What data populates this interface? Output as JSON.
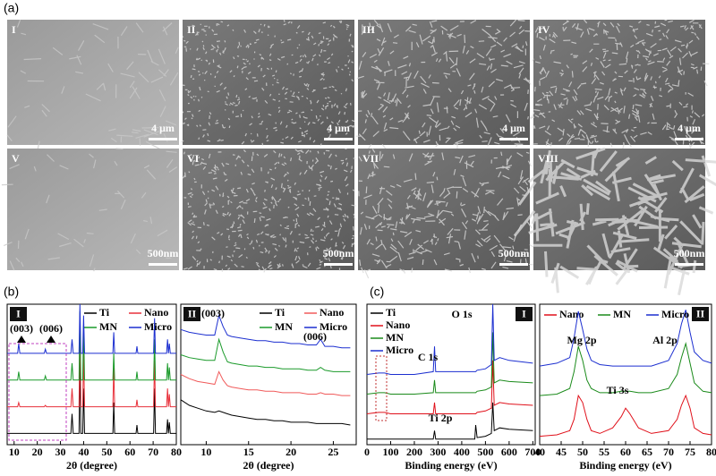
{
  "panel_labels": [
    "(a)",
    "(b)",
    "(c)"
  ],
  "sem_images": [
    {
      "label": "I",
      "scale_bar": "4 μm"
    },
    {
      "label": "II",
      "scale_bar": "4 μm"
    },
    {
      "label": "III",
      "scale_bar": "4 μm"
    },
    {
      "label": "IV",
      "scale_bar": "4 μm"
    },
    {
      "label": "V",
      "scale_bar": "500nm"
    },
    {
      "label": "VI",
      "scale_bar": "500nm"
    },
    {
      "label": "VII",
      "scale_bar": "500nm"
    },
    {
      "label": "VIII",
      "scale_bar": "500nm"
    }
  ],
  "chart_data": [
    {
      "type": "line",
      "panel": "I",
      "xlabel": "2θ (degree)",
      "x": [
        7,
        10,
        11.5,
        12,
        12.5,
        15,
        20,
        23,
        23.5,
        24,
        30,
        34.5,
        35,
        35.5,
        38,
        38.4,
        38.8,
        39.6,
        40,
        40.4,
        45,
        52.6,
        53,
        53.4,
        60,
        62.6,
        63,
        63.4,
        70.2,
        70.6,
        71,
        75.8,
        76.2,
        76.6,
        77,
        77.4,
        80
      ],
      "xlim": [
        7,
        80
      ],
      "ylim": [
        0,
        100
      ],
      "xticks": [
        10,
        20,
        30,
        40,
        50,
        60,
        70,
        80
      ],
      "annotations": [
        "(003)",
        "(006)"
      ],
      "series": [
        {
          "name": "Ti",
          "color": "#000000",
          "values": [
            8,
            8,
            8,
            8,
            8,
            8,
            8,
            8,
            8,
            8,
            8,
            8,
            22,
            8,
            8,
            60,
            8,
            8,
            40,
            8,
            8,
            8,
            30,
            8,
            8,
            8,
            14,
            8,
            8,
            40,
            8,
            8,
            18,
            8,
            16,
            8,
            8
          ]
        },
        {
          "name": "Nano",
          "color": "#e8303a",
          "values": [
            27,
            27,
            27,
            30,
            27,
            27,
            27,
            27,
            28,
            27,
            27,
            27,
            40,
            27,
            27,
            90,
            27,
            27,
            65,
            27,
            27,
            27,
            55,
            27,
            27,
            27,
            32,
            27,
            27,
            60,
            27,
            27,
            40,
            27,
            36,
            27,
            27
          ]
        },
        {
          "name": "MN",
          "color": "#1a9a2a",
          "values": [
            46,
            46,
            46,
            52,
            46,
            46,
            46,
            46,
            49,
            46,
            46,
            46,
            58,
            46,
            46,
            95,
            46,
            46,
            85,
            46,
            46,
            46,
            65,
            46,
            46,
            46,
            52,
            46,
            46,
            75,
            46,
            46,
            58,
            46,
            55,
            46,
            46
          ]
        },
        {
          "name": "Micro",
          "color": "#1c2fd0",
          "values": [
            65,
            65,
            65,
            72,
            65,
            65,
            65,
            65,
            68,
            65,
            65,
            65,
            75,
            65,
            65,
            100,
            65,
            65,
            92,
            65,
            65,
            65,
            80,
            65,
            65,
            65,
            70,
            65,
            65,
            90,
            65,
            65,
            75,
            65,
            72,
            65,
            65
          ]
        }
      ]
    },
    {
      "type": "line",
      "panel": "II",
      "xlabel": "2θ (degree)",
      "x": [
        7,
        8,
        9,
        10,
        11,
        11.5,
        12,
        12.5,
        13,
        14,
        15,
        16,
        17,
        18,
        19,
        20,
        21,
        22,
        23,
        23.5,
        24,
        25,
        26,
        27
      ],
      "xlim": [
        7,
        27.7
      ],
      "ylim": [
        0,
        100
      ],
      "xticks": [
        10,
        15,
        20,
        25
      ],
      "annotations": [
        "(003)",
        "(006)"
      ],
      "series": [
        {
          "name": "Ti",
          "color": "#000000",
          "values": [
            32,
            28,
            26,
            24,
            23,
            24,
            23,
            22,
            21,
            20,
            19,
            18,
            18,
            17,
            17,
            16,
            16,
            16,
            15,
            15,
            15,
            15,
            15,
            14
          ]
        },
        {
          "name": "Nano",
          "color": "#f05a5a",
          "values": [
            50,
            47,
            45,
            44,
            43,
            52,
            46,
            42,
            41,
            40,
            39,
            39,
            38,
            38,
            37,
            37,
            37,
            36,
            36,
            37,
            36,
            36,
            35,
            35
          ]
        },
        {
          "name": "MN",
          "color": "#1a9a2a",
          "values": [
            64,
            62,
            61,
            60,
            60,
            75,
            66,
            59,
            58,
            57,
            56,
            56,
            55,
            55,
            54,
            54,
            54,
            53,
            53,
            55,
            53,
            52,
            52,
            52
          ]
        },
        {
          "name": "Micro",
          "color": "#1c2fd0",
          "values": [
            82,
            80,
            79,
            78,
            78,
            92,
            84,
            78,
            77,
            76,
            75,
            74,
            74,
            73,
            73,
            72,
            72,
            71,
            71,
            75,
            70,
            70,
            69,
            69
          ]
        }
      ]
    },
    {
      "type": "line",
      "panel": "I",
      "xlabel": "Binding energy (eV)",
      "x": [
        0,
        50,
        74,
        100,
        200,
        280,
        285,
        290,
        400,
        455,
        459,
        465,
        500,
        525,
        531,
        537,
        560,
        600,
        700
      ],
      "xlim": [
        0,
        710
      ],
      "ylim": [
        0,
        100
      ],
      "xticks": [
        0,
        100,
        200,
        300,
        400,
        500,
        600,
        700
      ],
      "annotations": [
        "O 1s",
        "C 1s",
        "Ti 2p"
      ],
      "series": [
        {
          "name": "Ti",
          "color": "#000000",
          "values": [
            4,
            4,
            4,
            4,
            4,
            4,
            10,
            4,
            4,
            4,
            14,
            5,
            6,
            8,
            30,
            10,
            12,
            11,
            10
          ]
        },
        {
          "name": "Nano",
          "color": "#e0101a",
          "values": [
            22,
            23,
            23,
            22,
            22,
            22,
            30,
            22,
            22,
            22,
            22,
            23,
            24,
            26,
            60,
            28,
            30,
            29,
            28
          ]
        },
        {
          "name": "MN",
          "color": "#1a8a1a",
          "values": [
            36,
            37,
            37,
            36,
            36,
            37,
            46,
            37,
            37,
            37,
            37,
            38,
            39,
            41,
            80,
            44,
            46,
            45,
            44
          ]
        },
        {
          "name": "Micro",
          "color": "#1c2fd0",
          "values": [
            50,
            51,
            51,
            50,
            50,
            52,
            70,
            52,
            52,
            52,
            52,
            53,
            54,
            57,
            100,
            60,
            62,
            60,
            58
          ]
        }
      ]
    },
    {
      "type": "line",
      "panel": "II",
      "xlabel": "Binding energy (eV)",
      "x": [
        40,
        44,
        47,
        48,
        49,
        50,
        51,
        52,
        54,
        57,
        59,
        60,
        61,
        63,
        66,
        70,
        72,
        73,
        74,
        75,
        76,
        78,
        80
      ],
      "xlim": [
        40,
        80
      ],
      "ylim": [
        0,
        100
      ],
      "xticks": [
        40,
        45,
        50,
        55,
        60,
        65,
        70,
        75,
        80
      ],
      "annotations": [
        "Mg 2p",
        "Al 2p",
        "Ti 3s"
      ],
      "series": [
        {
          "name": "Nano",
          "color": "#e0101a",
          "values": [
            6,
            7,
            10,
            18,
            35,
            30,
            18,
            10,
            8,
            12,
            20,
            26,
            22,
            12,
            8,
            10,
            18,
            28,
            35,
            26,
            12,
            8,
            7
          ]
        },
        {
          "name": "MN",
          "color": "#1a8a1a",
          "values": [
            35,
            36,
            40,
            52,
            70,
            60,
            46,
            40,
            37,
            37,
            38,
            38,
            38,
            37,
            37,
            40,
            50,
            62,
            72,
            58,
            44,
            38,
            37
          ]
        },
        {
          "name": "Micro",
          "color": "#1c2fd0",
          "values": [
            56,
            58,
            62,
            76,
            95,
            82,
            68,
            60,
            57,
            56,
            56,
            56,
            56,
            56,
            56,
            60,
            72,
            86,
            96,
            80,
            66,
            60,
            58
          ]
        }
      ]
    }
  ]
}
